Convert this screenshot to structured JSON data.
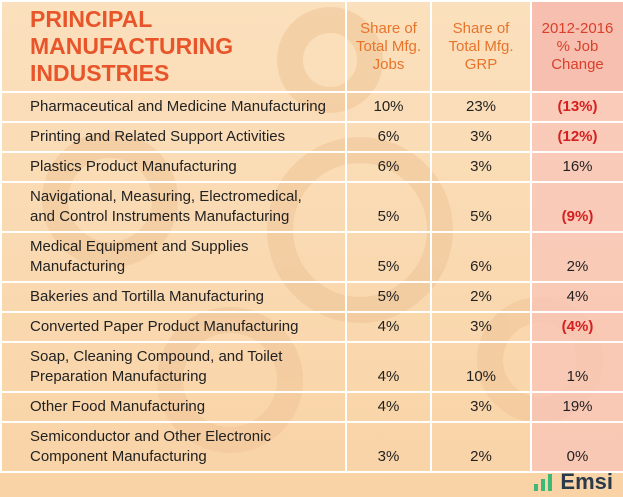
{
  "header": {
    "title": "PRINCIPAL MANUFACTURING\nINDUSTRIES"
  },
  "table": {
    "columns": [
      "Share of\nTotal Mfg.\nJobs",
      "Share of\nTotal Mfg.\nGRP",
      "2012-2016\n% Job\nChange"
    ],
    "rows": [
      [
        "Pharmaceutical and Medicine Manufacturing",
        "10%",
        "23%",
        "(13%)"
      ],
      [
        "Printing and Related Support Activities",
        "6%",
        "3%",
        "(12%)"
      ],
      [
        "Plastics Product Manufacturing",
        "6%",
        "3%",
        "16%"
      ],
      [
        "Navigational, Measuring, Electromedical,\nand Control Instruments Manufacturing",
        "5%",
        "5%",
        "(9%)"
      ],
      [
        "Medical Equipment and Supplies\nManufacturing",
        "5%",
        "6%",
        "2%"
      ],
      [
        "Bakeries and Tortilla Manufacturing",
        "5%",
        "2%",
        "4%"
      ],
      [
        "Converted Paper Product Manufacturing",
        "4%",
        "3%",
        "(4%)"
      ],
      [
        "Soap, Cleaning Compound, and Toilet\nPreparation Manufacturing",
        "4%",
        "10%",
        "1%"
      ],
      [
        "Other Food Manufacturing",
        "4%",
        "3%",
        "19%"
      ],
      [
        "Semiconductor and Other Electronic\nComponent Manufacturing",
        "3%",
        "2%",
        "0%"
      ]
    ]
  },
  "footer": {
    "brand": "Emsi"
  }
}
